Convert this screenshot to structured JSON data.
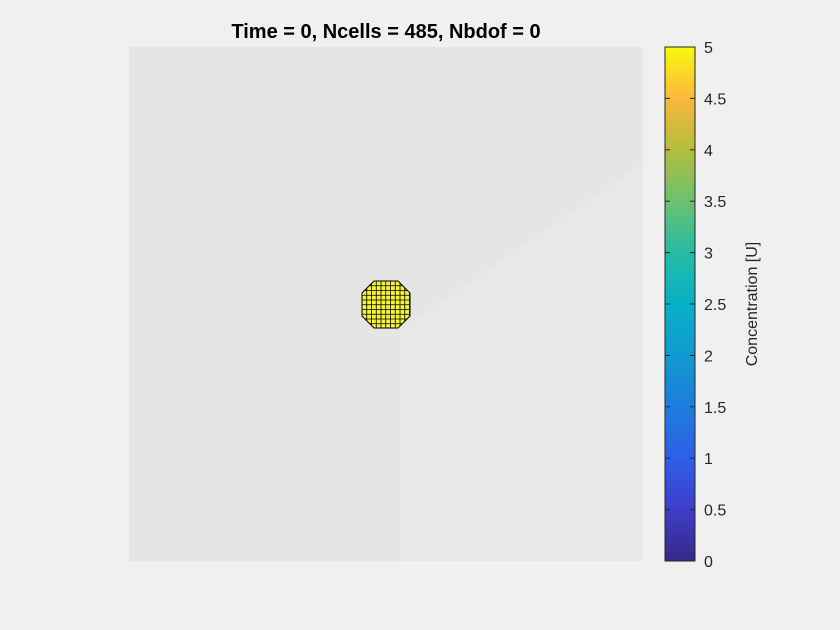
{
  "chart_data": {
    "type": "heatmap",
    "title": "Time = 0, Ncells = 485, Nbdof = 0",
    "background_color": "#e5e5e5",
    "grid": false,
    "colorbar": {
      "label": "Concentration [U]",
      "min": 0,
      "max": 5,
      "ticks": [
        0,
        0.5,
        1,
        1.5,
        2,
        2.5,
        3,
        3.5,
        4,
        4.5,
        5
      ],
      "tick_labels": [
        "0",
        "0.5",
        "1",
        "1.5",
        "2",
        "2.5",
        "3",
        "3.5",
        "4",
        "4.5",
        "5"
      ],
      "colormap": "parula",
      "placement": "right"
    },
    "cells": {
      "count": 485,
      "value": 5,
      "color": "#f7f336",
      "edge_color": "#000000",
      "shape": "circular cluster near center"
    }
  }
}
